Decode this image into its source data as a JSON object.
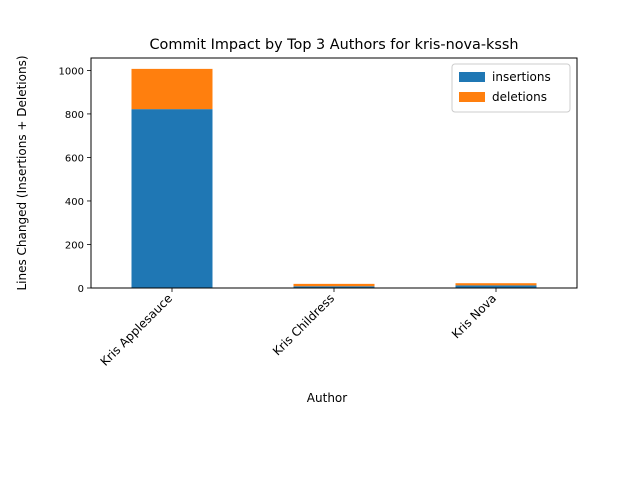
{
  "chart_data": {
    "type": "bar",
    "stacked": true,
    "title": "Commit Impact by Top 3 Authors for kris-nova-kssh",
    "xlabel": "Author",
    "ylabel": "Lines Changed (Insertions + Deletions)",
    "categories": [
      "Kris Applesauce",
      "Kris Childress",
      "Kris Nova"
    ],
    "series": [
      {
        "name": "insertions",
        "values": [
          822,
          8,
          12
        ],
        "color": "#1f77b4"
      },
      {
        "name": "deletions",
        "values": [
          185,
          11,
          10
        ],
        "color": "#ff7f0e"
      }
    ],
    "ylim": [
      0,
      1057
    ],
    "yticks": [
      0,
      200,
      400,
      600,
      800,
      1000
    ],
    "grid": false,
    "legend_position": "top-right"
  }
}
